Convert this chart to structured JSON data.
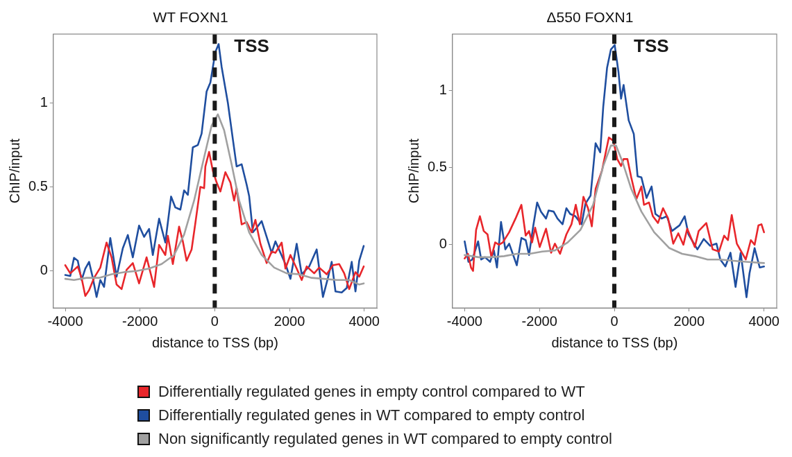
{
  "chart_data": [
    {
      "type": "line",
      "title": "WT FOXN1",
      "xlabel": "distance to TSS (bp)",
      "ylabel": "ChIP/input",
      "xlim": [
        -4320,
        4340
      ],
      "ylim": [
        -0.22,
        1.41
      ],
      "xticks": [
        -4000,
        -2000,
        0,
        2000,
        4000
      ],
      "yticks": [
        0,
        0.5,
        1
      ],
      "grid": false,
      "legend": "bottom",
      "marker": "none",
      "line_style": "solid",
      "ref_lines": [
        {
          "axis": "x",
          "value": 0,
          "label": "TSS",
          "color": "#1a1a1a",
          "line_style": "dashed"
        }
      ],
      "series": [
        {
          "name": "Non significantly regulated genes in WT compared to empty control",
          "color": "#a0a0a0",
          "x": [
            -4000,
            -3766,
            -3430,
            -3095,
            -2761,
            -2426,
            -2091,
            -1757,
            -1422,
            -1088,
            -820,
            -552,
            -285,
            -84,
            84,
            251,
            452,
            653,
            921,
            1256,
            1591,
            1925,
            2260,
            2594,
            2929,
            3264,
            3599,
            3867,
            3987
          ],
          "values": [
            -0.047,
            -0.054,
            -0.041,
            -0.041,
            -0.02,
            -0.007,
            0,
            0.014,
            0.041,
            0.095,
            0.216,
            0.419,
            0.676,
            0.865,
            0.932,
            0.838,
            0.635,
            0.419,
            0.23,
            0.095,
            0.02,
            -0.014,
            -0.02,
            -0.041,
            -0.047,
            -0.054,
            -0.054,
            -0.081,
            -0.074
          ]
        },
        {
          "name": "Differentially regulated genes in empty control compared to WT",
          "color": "#e8262b",
          "x": [
            -4000,
            -3866,
            -3665,
            -3564,
            -3464,
            -3363,
            -3229,
            -3062,
            -2895,
            -2761,
            -2627,
            -2493,
            -2359,
            -2192,
            -2025,
            -1824,
            -1623,
            -1489,
            -1322,
            -1255,
            -1121,
            -954,
            -854,
            -753,
            -619,
            -519,
            -385,
            -284,
            -251,
            -151,
            -50,
            50,
            151,
            285,
            419,
            519,
            586,
            720,
            854,
            988,
            1088,
            1222,
            1390,
            1524,
            1624,
            1791,
            1892,
            2026,
            2193,
            2327,
            2461,
            2661,
            2795,
            2996,
            3163,
            3331,
            3465,
            3599,
            3766,
            3867,
            3987
          ],
          "values": [
            0.034,
            -0.014,
            0.027,
            -0.041,
            -0.149,
            -0.115,
            -0.041,
            0.02,
            0.169,
            0.081,
            -0.081,
            -0.108,
            0.007,
            0.047,
            -0.074,
            0.081,
            -0.095,
            0.155,
            0.095,
            0.209,
            0.041,
            0.264,
            0.176,
            0.061,
            0.128,
            0.284,
            0.5,
            0.493,
            0.622,
            0.709,
            0.595,
            0.527,
            0.473,
            0.588,
            0.527,
            0.419,
            0.493,
            0.277,
            0.291,
            0.23,
            0.304,
            0.162,
            0.047,
            0.115,
            0.108,
            0.169,
            0.014,
            0.095,
            0.014,
            -0.054,
            0.027,
            -0.014,
            0.02,
            -0.02,
            0.034,
            0.041,
            -0.014,
            -0.108,
            -0.007,
            -0.034,
            0.027
          ]
        },
        {
          "name": "Differentially regulated genes in WT compared to empty control",
          "color": "#1f4e9f",
          "x": [
            -4000,
            -3866,
            -3766,
            -3665,
            -3564,
            -3464,
            -3363,
            -3263,
            -3162,
            -3062,
            -2962,
            -2795,
            -2627,
            -2460,
            -2326,
            -2192,
            -2025,
            -1891,
            -1757,
            -1657,
            -1489,
            -1322,
            -1168,
            -1054,
            -920,
            -820,
            -720,
            -586,
            -452,
            -351,
            -218,
            -117,
            17,
            104,
            184,
            352,
            485,
            586,
            720,
            854,
            921,
            1021,
            1122,
            1256,
            1390,
            1523,
            1624,
            1758,
            1892,
            2026,
            2193,
            2327,
            2528,
            2728,
            2896,
            3030,
            3130,
            3231,
            3398,
            3532,
            3666,
            3766,
            3867,
            3987
          ],
          "values": [
            -0.024,
            -0.03,
            0.078,
            0.061,
            -0.054,
            0.014,
            0.054,
            -0.041,
            -0.155,
            -0.054,
            -0.095,
            0.196,
            -0.034,
            0.135,
            0.214,
            0.081,
            0.27,
            0.203,
            0.25,
            0.095,
            0.311,
            0.169,
            0.443,
            0.378,
            0.365,
            0.48,
            0.453,
            0.736,
            0.75,
            0.818,
            1.068,
            1.122,
            1.304,
            1.351,
            1.216,
            1.0,
            0.784,
            0.622,
            0.635,
            0.514,
            0.446,
            0.23,
            0.257,
            0.297,
            0.203,
            0.108,
            0.176,
            0.108,
            0.041,
            -0.047,
            0.162,
            -0.02,
            0.027,
            0.128,
            -0.155,
            -0.041,
            0.054,
            -0.122,
            -0.128,
            -0.101,
            0.054,
            -0.122,
            0.061,
            0.149
          ]
        }
      ]
    },
    {
      "type": "line",
      "title": "Δ550 FOXN1",
      "xlabel": "distance to TSS (bp)",
      "ylabel": "ChIP/input",
      "xlim": [
        -4326,
        4340
      ],
      "ylim": [
        -0.41,
        1.367
      ],
      "xticks": [
        -4000,
        -2000,
        0,
        2000,
        4000
      ],
      "yticks": [
        0,
        0.5,
        1
      ],
      "grid": false,
      "marker": "none",
      "line_style": "solid",
      "ref_lines": [
        {
          "axis": "x",
          "value": 0,
          "label": "TSS",
          "color": "#1a1a1a",
          "line_style": "dashed"
        }
      ],
      "series": [
        {
          "color": "#a0a0a0",
          "x": [
            -4000,
            -3626,
            -3286,
            -2946,
            -2606,
            -2266,
            -1926,
            -1587,
            -1247,
            -907,
            -567,
            -296,
            -92,
            44,
            214,
            452,
            724,
            1064,
            1472,
            1812,
            2152,
            2492,
            2832,
            3172,
            3512,
            4000
          ],
          "values": [
            -0.067,
            -0.081,
            -0.081,
            -0.074,
            -0.059,
            -0.059,
            -0.044,
            -0.037,
            0.015,
            0.096,
            0.259,
            0.511,
            0.644,
            0.644,
            0.541,
            0.363,
            0.215,
            0.081,
            -0.022,
            -0.059,
            -0.074,
            -0.096,
            -0.096,
            -0.104,
            -0.111,
            -0.119
          ]
        },
        {
          "color": "#e8262b",
          "x": [
            -4000,
            -3911,
            -3830,
            -3775,
            -3694,
            -3592,
            -3490,
            -3388,
            -3286,
            -3184,
            -3082,
            -2980,
            -2810,
            -2640,
            -2483,
            -2368,
            -2279,
            -2198,
            -2116,
            -1994,
            -1825,
            -1689,
            -1587,
            -1451,
            -1281,
            -1145,
            -1030,
            -921,
            -826,
            -703,
            -601,
            -500,
            -330,
            -146,
            -24,
            78,
            180,
            248,
            350,
            452,
            588,
            724,
            792,
            928,
            1030,
            1166,
            1302,
            1438,
            1574,
            1710,
            1846,
            1948,
            2152,
            2254,
            2458,
            2628,
            2798,
            2934,
            3036,
            3138,
            3274,
            3512,
            3648,
            3749,
            3851,
            3932,
            4000
          ],
          "values": [
            -0.089,
            -0.059,
            -0.148,
            -0.17,
            0.096,
            0.185,
            0.089,
            0.067,
            -0.081,
            0.015,
            0,
            0.015,
            0.081,
            0.17,
            0.259,
            0.059,
            0.089,
            0.015,
            0.111,
            -0.015,
            0.104,
            -0.052,
            0.007,
            -0.059,
            0.067,
            0.133,
            0.259,
            0.133,
            0.311,
            0.237,
            0.119,
            0.363,
            0.481,
            0.696,
            0.674,
            0.556,
            0.511,
            0.556,
            0.556,
            0.437,
            0.296,
            0.378,
            0.259,
            0.274,
            0.185,
            0.141,
            0.237,
            0.17,
            0.007,
            0.074,
            0,
            0.104,
            -0.015,
            0.089,
            0.141,
            -0.03,
            -0.044,
            0.059,
            0.03,
            0.193,
            0.007,
            -0.096,
            0.03,
            0,
            0.126,
            0.133,
            0.081
          ]
        },
        {
          "color": "#1f4e9f",
          "x": [
            -4000,
            -3898,
            -3796,
            -3640,
            -3558,
            -3456,
            -3320,
            -3218,
            -3136,
            -3028,
            -2912,
            -2810,
            -2606,
            -2483,
            -2368,
            -2279,
            -2164,
            -2062,
            -1960,
            -1825,
            -1757,
            -1621,
            -1519,
            -1383,
            -1281,
            -1179,
            -1043,
            -873,
            -771,
            -635,
            -500,
            -377,
            -296,
            -194,
            -92,
            10,
            112,
            180,
            248,
            384,
            520,
            622,
            724,
            860,
            996,
            1098,
            1268,
            1404,
            1540,
            1744,
            1880,
            1982,
            2220,
            2390,
            2560,
            2730,
            2832,
            2968,
            3104,
            3240,
            3376,
            3532,
            3613,
            3749,
            3885,
            4000
          ],
          "values": [
            0.022,
            -0.111,
            -0.096,
            0.022,
            -0.096,
            -0.081,
            -0.111,
            -0.037,
            -0.148,
            0.148,
            -0.03,
            0.007,
            -0.133,
            0.044,
            0.03,
            -0.067,
            0.126,
            0.274,
            0.215,
            0.17,
            0.222,
            0.215,
            0.17,
            0.133,
            0.237,
            0.2,
            0.185,
            0.133,
            0.267,
            0.319,
            0.659,
            0.6,
            0.896,
            1.148,
            1.267,
            1.296,
            1.119,
            0.948,
            1.037,
            0.807,
            0.719,
            0.444,
            0.437,
            0.304,
            0.378,
            0.2,
            0.17,
            0.185,
            0.089,
            0.126,
            0.185,
            0.067,
            -0.03,
            0.037,
            -0.007,
            0.007,
            -0.096,
            -0.141,
            -0.052,
            -0.274,
            -0.052,
            -0.341,
            -0.185,
            -0.022,
            -0.148,
            -0.141
          ]
        }
      ]
    }
  ]
}
